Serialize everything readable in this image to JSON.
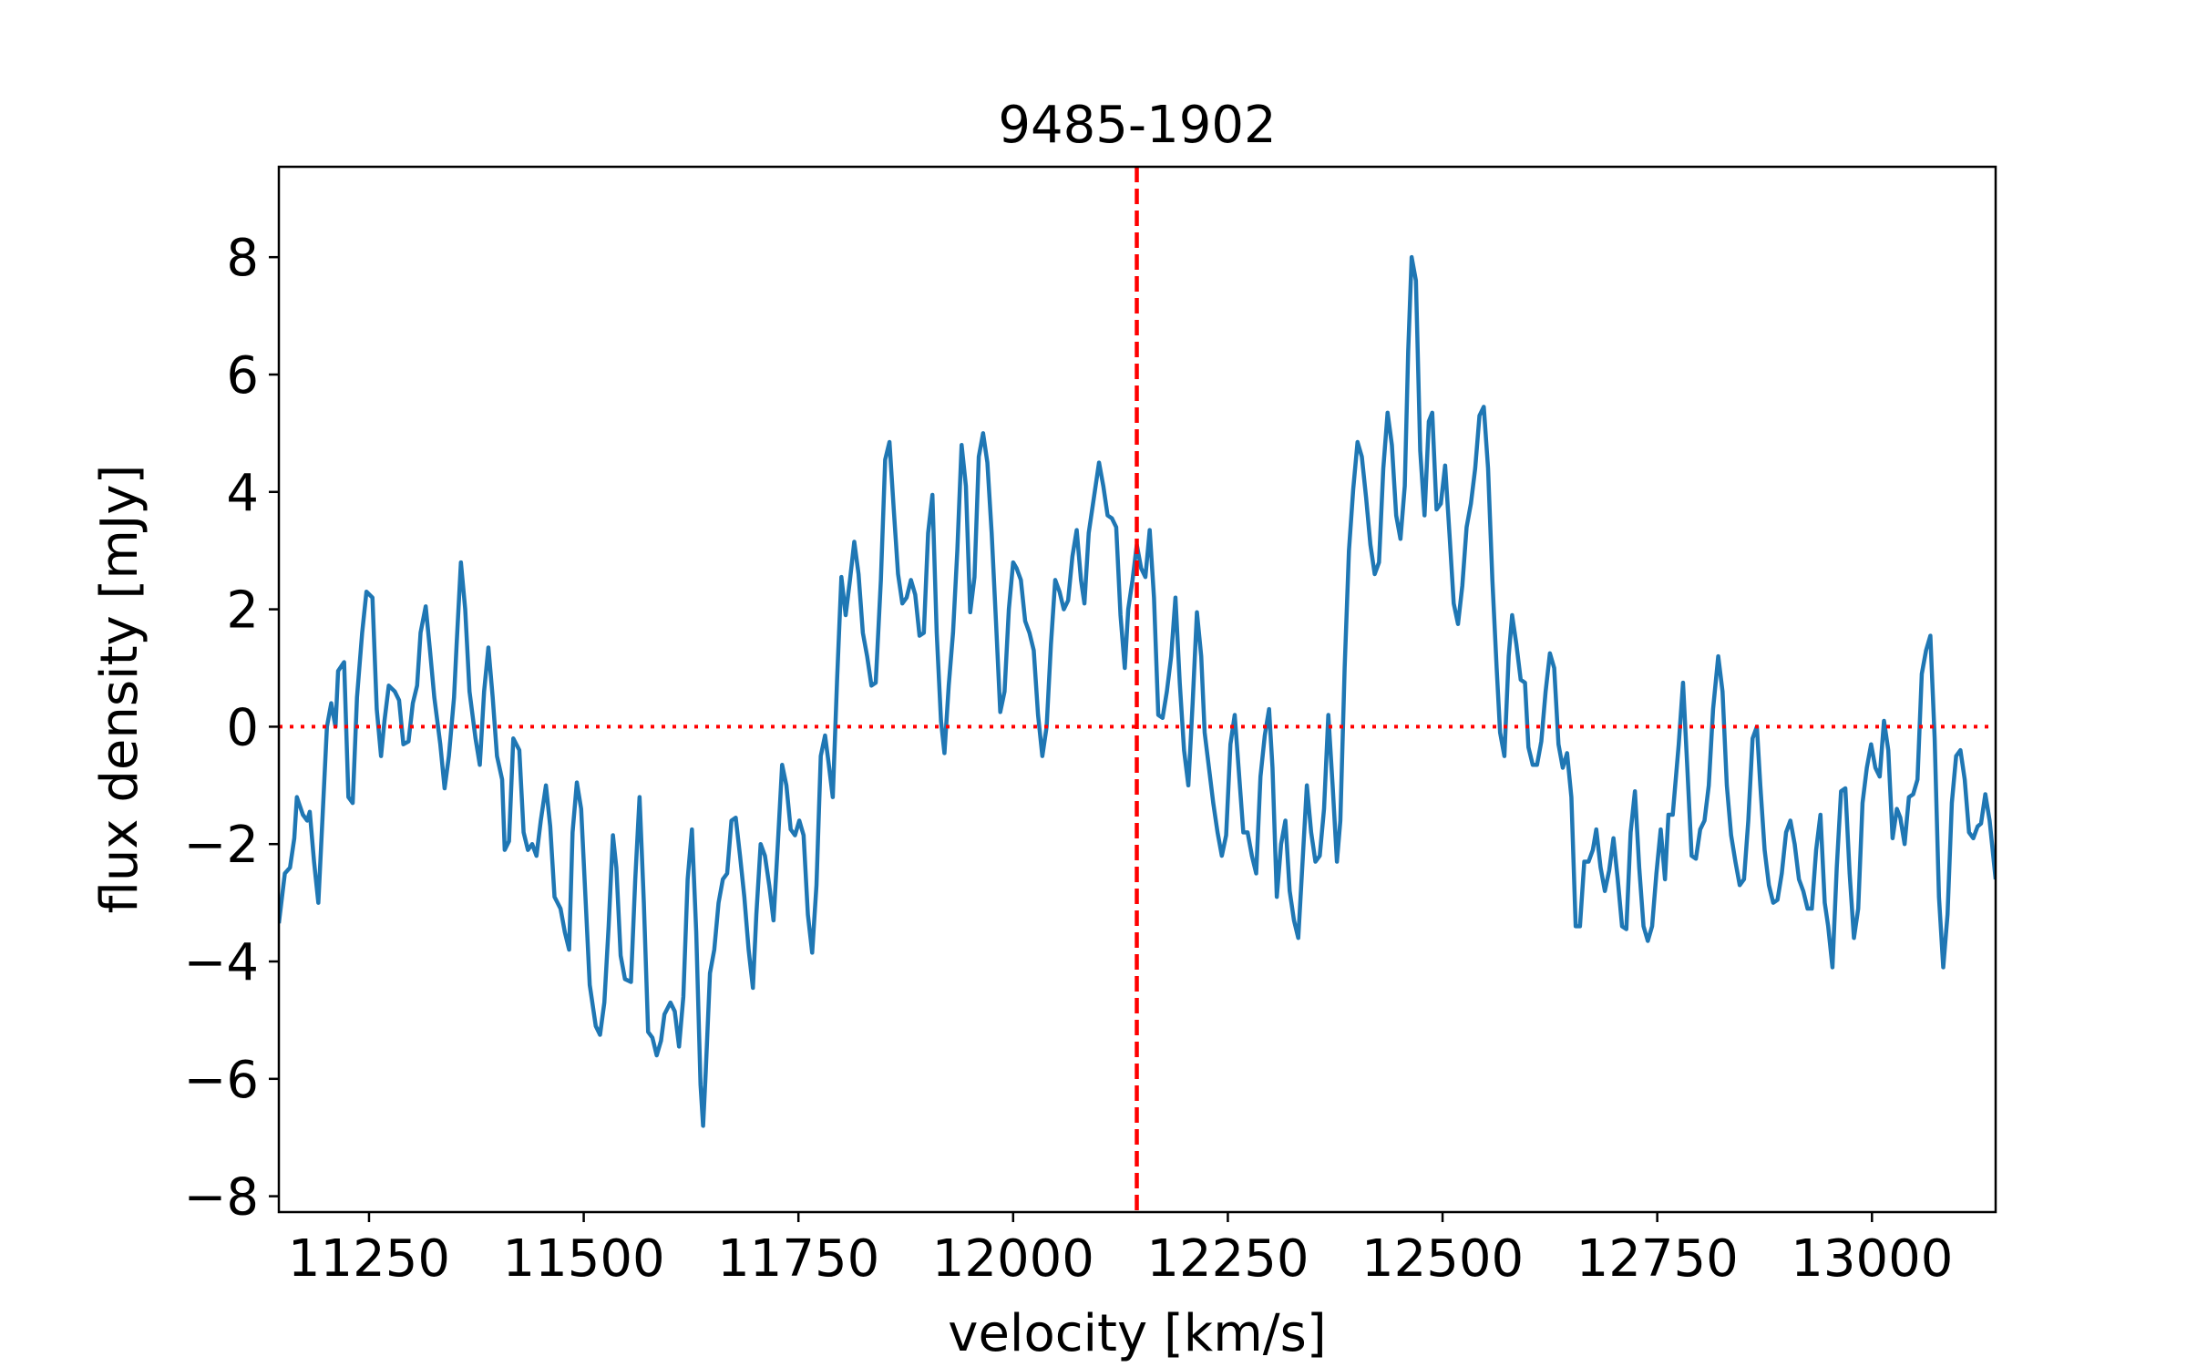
{
  "chart_data": {
    "type": "line",
    "title": "9485-1902",
    "xlabel": "velocity [km/s]",
    "ylabel": "flux density [mJy]",
    "color": "#1f77b4",
    "marker_color": "#ff0000",
    "vline": 12144,
    "hline": 0,
    "xlim": [
      11145,
      13144
    ],
    "ylim": [
      -8.27,
      9.54
    ],
    "xticks": [
      11250,
      11500,
      11750,
      12000,
      12250,
      12500,
      12750,
      13000
    ],
    "yticks": [
      {
        "value": -8,
        "label": "−8"
      },
      {
        "value": -6,
        "label": "−6"
      },
      {
        "value": -4,
        "label": "−4"
      },
      {
        "value": -2,
        "label": "−2"
      },
      0,
      2,
      4,
      6,
      8
    ],
    "x": [
      11145,
      11152,
      11158,
      11163,
      11166,
      11173,
      11178,
      11181,
      11186,
      11191,
      11196,
      11201,
      11206,
      11211,
      11214,
      11221,
      11226,
      11231,
      11236,
      11242,
      11247,
      11254,
      11259,
      11264,
      11268,
      11273,
      11280,
      11285,
      11290,
      11296,
      11301,
      11306,
      11310,
      11316,
      11321,
      11326,
      11333,
      11338,
      11343,
      11349,
      11352,
      11357,
      11362,
      11367,
      11374,
      11379,
      11384,
      11389,
      11394,
      11399,
      11405,
      11408,
      11413,
      11418,
      11425,
      11430,
      11435,
      11440,
      11445,
      11450,
      11456,
      11461,
      11466,
      11473,
      11478,
      11483,
      11487,
      11492,
      11497,
      11502,
      11507,
      11514,
      11519,
      11524,
      11529,
      11534,
      11538,
      11543,
      11548,
      11555,
      11560,
      11565,
      11570,
      11575,
      11580,
      11585,
      11590,
      11594,
      11601,
      11606,
      11611,
      11616,
      11621,
      11626,
      11631,
      11636,
      11639,
      11642,
      11647,
      11652,
      11657,
      11662,
      11667,
      11672,
      11677,
      11682,
      11687,
      11692,
      11697,
      11701,
      11706,
      11711,
      11716,
      11721,
      11726,
      11731,
      11736,
      11741,
      11746,
      11751,
      11756,
      11761,
      11766,
      11771,
      11776,
      11781,
      11785,
      11790,
      11795,
      11800,
      11805,
      11810,
      11815,
      11820,
      11825,
      11830,
      11835,
      11840,
      11846,
      11851,
      11856,
      11861,
      11866,
      11871,
      11876,
      11881,
      11886,
      11891,
      11896,
      11901,
      11906,
      11911,
      11916,
      11920,
      11925,
      11930,
      11935,
      11940,
      11945,
      11950,
      11955,
      11960,
      11965,
      11970,
      11975,
      11980,
      11985,
      11990,
      11995,
      12000,
      12004,
      12009,
      12014,
      12019,
      12024,
      12029,
      12034,
      12039,
      12044,
      12049,
      12054,
      12059,
      12064,
      12069,
      12074,
      12079,
      12083,
      12088,
      12093,
      12100,
      12105,
      12110,
      12115,
      12120,
      12125,
      12130,
      12134,
      12139,
      12144,
      12149,
      12154,
      12159,
      12164,
      12169,
      12174,
      12179,
      12184,
      12189,
      12194,
      12199,
      12204,
      12209,
      12214,
      12219,
      12223,
      12228,
      12233,
      12238,
      12243,
      12248,
      12253,
      12258,
      12263,
      12268,
      12273,
      12278,
      12283,
      12288,
      12293,
      12298,
      12302,
      12307,
      12312,
      12317,
      12322,
      12327,
      12332,
      12337,
      12342,
      12347,
      12352,
      12357,
      12362,
      12367,
      12372,
      12377,
      12381,
      12386,
      12391,
      12396,
      12401,
      12406,
      12411,
      12416,
      12421,
      12426,
      12431,
      12436,
      12441,
      12446,
      12451,
      12456,
      12460,
      12464,
      12469,
      12474,
      12479,
      12484,
      12488,
      12493,
      12498,
      12503,
      12508,
      12513,
      12518,
      12523,
      12528,
      12533,
      12538,
      12543,
      12548,
      12553,
      12558,
      12563,
      12567,
      12572,
      12577,
      12581,
      12586,
      12591,
      12596,
      12600,
      12605,
      12610,
      12615,
      12620,
      12625,
      12630,
      12635,
      12640,
      12645,
      12650,
      12655,
      12660,
      12665,
      12670,
      12675,
      12679,
      12684,
      12689,
      12694,
      12699,
      12704,
      12709,
      12714,
      12719,
      12724,
      12729,
      12734,
      12739,
      12744,
      12749,
      12754,
      12759,
      12763,
      12768,
      12775,
      12780,
      12785,
      12790,
      12795,
      12800,
      12805,
      12810,
      12815,
      12821,
      12826,
      12831,
      12836,
      12841,
      12846,
      12851,
      12856,
      12861,
      12866,
      12870,
      12875,
      12880,
      12885,
      12890,
      12895,
      12900,
      12905,
      12910,
      12915,
      12920,
      12925,
      12930,
      12935,
      12940,
      12945,
      12949,
      12954,
      12959,
      12964,
      12969,
      12974,
      12979,
      12984,
      12989,
      12994,
      12999,
      13004,
      13009,
      13014,
      13019,
      13024,
      13029,
      13033,
      13038,
      13043,
      13048,
      13053,
      13058,
      13063,
      13068,
      13073,
      13078,
      13083,
      13088,
      13093,
      13098,
      13103,
      13108,
      13113,
      13118,
      13123,
      13127,
      13132,
      13137,
      13144
    ],
    "values": [
      -3.35,
      -2.5,
      -2.4,
      -1.9,
      -1.2,
      -1.5,
      -1.6,
      -1.45,
      -2.3,
      -3.0,
      -1.5,
      0.0,
      0.4,
      0.0,
      0.95,
      1.1,
      -1.2,
      -1.3,
      0.5,
      1.6,
      2.3,
      2.2,
      0.3,
      -0.5,
      0.1,
      0.7,
      0.6,
      0.45,
      -0.3,
      -0.25,
      0.4,
      0.7,
      1.6,
      2.05,
      1.3,
      0.5,
      -0.3,
      -1.05,
      -0.5,
      0.5,
      1.4,
      2.8,
      2.0,
      0.6,
      -0.2,
      -0.65,
      0.6,
      1.35,
      0.5,
      -0.5,
      -0.9,
      -2.1,
      -1.95,
      -0.2,
      -0.4,
      -1.8,
      -2.1,
      -2.0,
      -2.2,
      -1.6,
      -1.0,
      -1.7,
      -2.9,
      -3.1,
      -3.5,
      -3.8,
      -1.8,
      -0.95,
      -1.4,
      -2.9,
      -4.4,
      -5.1,
      -5.25,
      -4.7,
      -3.4,
      -1.85,
      -2.4,
      -3.9,
      -4.3,
      -4.35,
      -2.6,
      -1.2,
      -3.0,
      -5.2,
      -5.3,
      -5.6,
      -5.35,
      -4.9,
      -4.7,
      -4.85,
      -5.45,
      -4.6,
      -2.6,
      -1.75,
      -3.5,
      -6.1,
      -6.8,
      -5.9,
      -4.2,
      -3.8,
      -3.0,
      -2.6,
      -2.5,
      -1.6,
      -1.55,
      -2.2,
      -2.9,
      -3.8,
      -4.45,
      -3.2,
      -2.0,
      -2.2,
      -2.7,
      -3.3,
      -2.0,
      -0.65,
      -1.0,
      -1.75,
      -1.85,
      -1.6,
      -1.85,
      -3.2,
      -3.85,
      -2.7,
      -0.5,
      -0.15,
      -0.6,
      -1.2,
      0.8,
      2.55,
      1.9,
      2.5,
      3.15,
      2.6,
      1.6,
      1.2,
      0.7,
      0.75,
      2.5,
      4.55,
      4.85,
      3.7,
      2.6,
      2.1,
      2.2,
      2.5,
      2.25,
      1.55,
      1.6,
      3.3,
      3.95,
      1.6,
      0.1,
      -0.45,
      0.7,
      1.6,
      3.0,
      4.8,
      4.1,
      1.95,
      2.55,
      4.6,
      5.0,
      4.5,
      3.3,
      1.8,
      0.25,
      0.6,
      2.0,
      2.8,
      2.7,
      2.5,
      1.8,
      1.6,
      1.3,
      0.2,
      -0.5,
      0.0,
      1.4,
      2.5,
      2.3,
      2.0,
      2.15,
      2.9,
      3.35,
      2.5,
      2.1,
      3.3,
      3.8,
      4.5,
      4.1,
      3.6,
      3.55,
      3.4,
      1.9,
      1.0,
      2.0,
      2.5,
      3.1,
      2.7,
      2.55,
      3.35,
      2.2,
      0.2,
      0.15,
      0.6,
      1.2,
      2.2,
      0.75,
      -0.4,
      -1.0,
      0.4,
      1.95,
      1.2,
      -0.1,
      -0.7,
      -1.3,
      -1.8,
      -2.2,
      -1.85,
      -0.3,
      0.2,
      -0.8,
      -1.8,
      -1.8,
      -2.2,
      -2.5,
      -0.85,
      -0.15,
      0.3,
      -0.7,
      -2.9,
      -2.0,
      -1.6,
      -2.8,
      -3.3,
      -3.6,
      -2.3,
      -1.0,
      -1.8,
      -2.3,
      -2.2,
      -1.4,
      0.2,
      -1.0,
      -2.3,
      -1.6,
      1.0,
      3.0,
      4.05,
      4.85,
      4.6,
      3.9,
      3.1,
      2.6,
      2.8,
      4.4,
      5.35,
      4.8,
      3.6,
      3.2,
      4.1,
      6.4,
      8.0,
      7.6,
      4.7,
      3.6,
      5.2,
      5.35,
      3.7,
      3.8,
      4.45,
      3.3,
      2.1,
      1.75,
      2.4,
      3.4,
      3.8,
      4.4,
      5.3,
      5.45,
      4.4,
      2.5,
      1.0,
      -0.1,
      -0.5,
      1.2,
      1.9,
      1.4,
      0.8,
      0.75,
      -0.35,
      -0.65,
      -0.65,
      -0.25,
      0.6,
      1.25,
      1.0,
      -0.3,
      -0.7,
      -0.45,
      -1.2,
      -3.4,
      -3.4,
      -2.3,
      -2.3,
      -2.1,
      -1.75,
      -2.4,
      -2.8,
      -2.45,
      -1.9,
      -2.6,
      -3.4,
      -3.45,
      -1.8,
      -1.1,
      -2.4,
      -3.4,
      -3.65,
      -3.4,
      -2.5,
      -1.75,
      -2.6,
      -1.5,
      -1.5,
      -0.3,
      0.75,
      -0.7,
      -2.2,
      -2.25,
      -1.75,
      -1.6,
      -1.0,
      0.3,
      1.2,
      0.6,
      -1.0,
      -1.85,
      -2.3,
      -2.7,
      -2.6,
      -1.6,
      -0.2,
      0.0,
      -1.0,
      -2.1,
      -2.7,
      -3.0,
      -2.95,
      -2.5,
      -1.8,
      -1.6,
      -2.0,
      -2.6,
      -2.8,
      -3.1,
      -3.1,
      -2.1,
      -1.5,
      -3.0,
      -3.4,
      -4.1,
      -2.4,
      -1.1,
      -1.05,
      -2.5,
      -3.6,
      -3.1,
      -1.3,
      -0.7,
      -0.3,
      -0.7,
      -0.85,
      0.1,
      -0.4,
      -1.9,
      -1.4,
      -1.55,
      -2.0,
      -1.2,
      -1.15,
      -0.9,
      0.9,
      1.3,
      1.55,
      -0.2,
      -2.9,
      -4.1,
      -3.2,
      -1.3,
      -0.5,
      -0.4,
      -0.9,
      -1.8,
      -1.9,
      -1.7,
      -1.65,
      -1.15,
      -1.6,
      -2.6
    ]
  }
}
